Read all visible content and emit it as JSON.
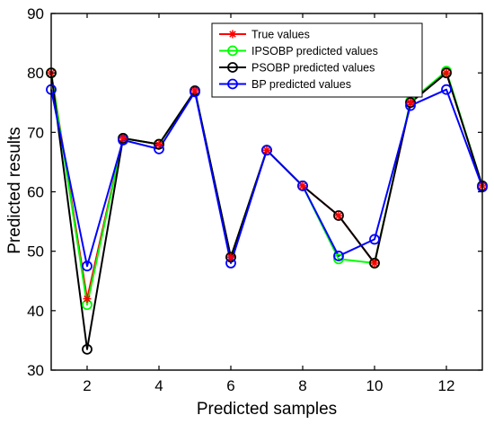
{
  "chart_data": {
    "type": "line",
    "xlabel": "Predicted samples",
    "ylabel": "Predicted results",
    "xlim": [
      1,
      13
    ],
    "ylim": [
      30,
      90
    ],
    "x": [
      1,
      2,
      3,
      4,
      5,
      6,
      7,
      8,
      9,
      10,
      11,
      12,
      13
    ],
    "xticks": [
      "2",
      "4",
      "6",
      "8",
      "10",
      "12"
    ],
    "xtick_values": [
      2,
      4,
      6,
      8,
      10,
      12
    ],
    "yticks": [
      "30",
      "40",
      "50",
      "60",
      "70",
      "80",
      "90"
    ],
    "ytick_values": [
      30,
      40,
      50,
      60,
      70,
      80,
      90
    ],
    "legend_position": "top-right",
    "grid": false,
    "series": [
      {
        "name": "True values",
        "color": "#ff0000",
        "marker": "asterisk",
        "values": [
          80,
          42,
          69,
          68,
          77,
          49,
          67,
          61,
          56,
          48,
          75,
          80,
          61
        ]
      },
      {
        "name": "IPSOBP predicted values",
        "color": "#00ff00",
        "marker": "circle",
        "values": [
          80,
          41,
          69,
          68,
          77,
          49,
          67,
          61,
          48.7,
          48,
          75.2,
          80.3,
          61
        ]
      },
      {
        "name": "PSOBP predicted values",
        "color": "#000000",
        "marker": "circle",
        "values": [
          80,
          33.5,
          69,
          68,
          77,
          49,
          67,
          61,
          56,
          48,
          75,
          80,
          61
        ]
      },
      {
        "name": "BP predicted values",
        "color": "#0000ff",
        "marker": "circle",
        "values": [
          77.2,
          47.5,
          68.7,
          67.2,
          76.8,
          48,
          67,
          61,
          49.2,
          52,
          74.5,
          77.2,
          60.8
        ]
      }
    ]
  }
}
